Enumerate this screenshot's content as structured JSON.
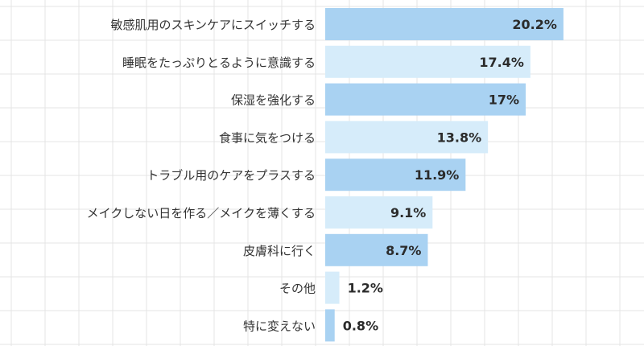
{
  "chart_data": {
    "type": "bar",
    "orientation": "horizontal",
    "categories": [
      "敏感肌用のスキンケアにスイッチする",
      "睡眠をたっぷりとるように意識する",
      "保湿を強化する",
      "食事に気をつける",
      "トラブル用のケアをプラスする",
      "メイクしない日を作る／メイクを薄くする",
      "皮膚科に行く",
      "その他",
      "特に変えない"
    ],
    "values": [
      20.2,
      17.4,
      17,
      13.8,
      11.9,
      9.1,
      8.7,
      1.2,
      0.8
    ],
    "value_labels": [
      "20.2%",
      "17.4%",
      "17%",
      "13.8%",
      "11.9%",
      "9.1%",
      "8.7%",
      "1.2%",
      "0.8%"
    ],
    "unit": "%",
    "grid": true,
    "colors": {
      "bar_dark": "#a9d2f2",
      "bar_light": "#d6ecfa",
      "grid": "#e4e4e4"
    }
  }
}
